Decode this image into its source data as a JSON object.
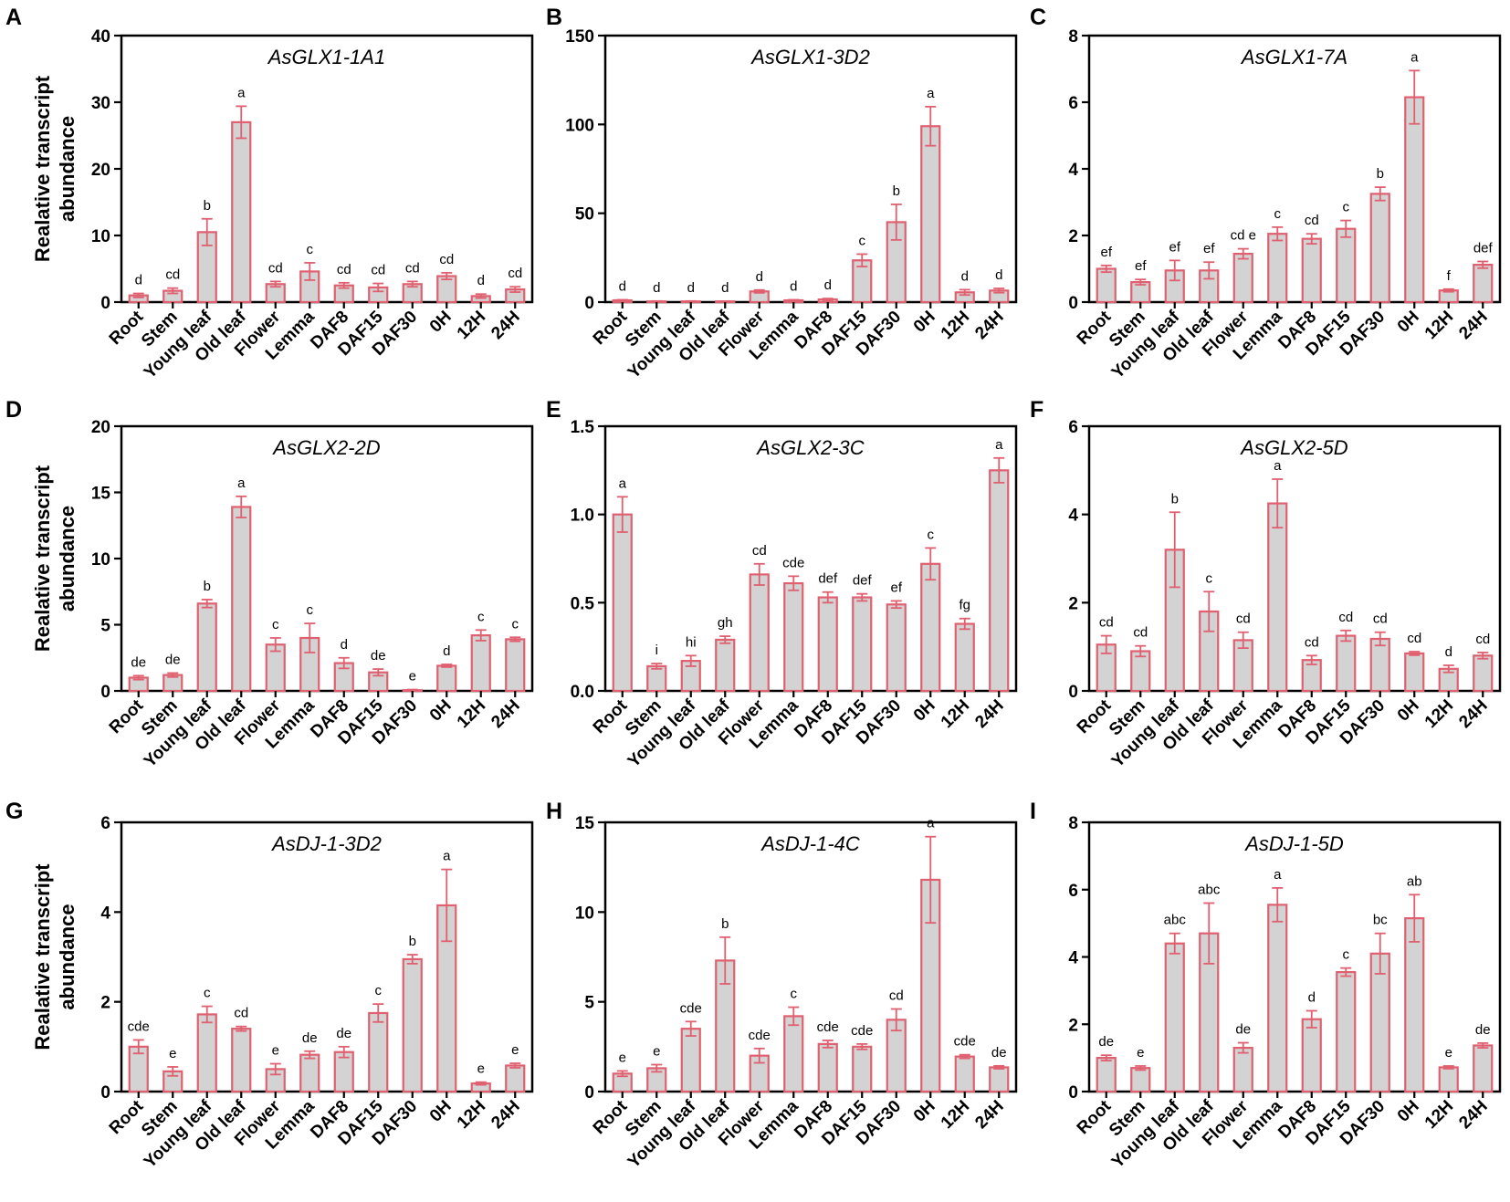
{
  "figure": {
    "ylabel_line1": "Realative transcript",
    "ylabel_line2": "abundance",
    "colors": {
      "bar_fill": "#d3d3d3",
      "bar_edge": "#e06070",
      "axis": "#000000"
    }
  },
  "chart_data": [
    {
      "panel": "A",
      "type": "bar",
      "title": "AsGLX1-1A1",
      "ylabel": "Realative transcript abundance",
      "xlabel": "",
      "ylim": [
        0,
        40
      ],
      "yticks": [
        0,
        10,
        20,
        30,
        40
      ],
      "categories": [
        "Root",
        "Stem",
        "Young leaf",
        "Old leaf",
        "Flower",
        "Lemma",
        "DAF8",
        "DAF15",
        "DAF30",
        "0H",
        "12H",
        "24H"
      ],
      "values": [
        1.0,
        1.7,
        10.5,
        27.0,
        2.7,
        4.6,
        2.5,
        2.2,
        2.7,
        3.9,
        0.9,
        1.9
      ],
      "errors": [
        0.3,
        0.4,
        2.0,
        2.4,
        0.4,
        1.3,
        0.4,
        0.6,
        0.4,
        0.5,
        0.3,
        0.4
      ],
      "labels": [
        "d",
        "cd",
        "b",
        "a",
        "cd",
        "c",
        "cd",
        "cd",
        "cd",
        "cd",
        "d",
        "cd"
      ]
    },
    {
      "panel": "B",
      "type": "bar",
      "title": "AsGLX1-3D2",
      "ylabel": "",
      "xlabel": "",
      "ylim": [
        0,
        150
      ],
      "yticks": [
        0,
        50,
        100,
        150
      ],
      "categories": [
        "Root",
        "Stem",
        "Young leaf",
        "Old leaf",
        "Flower",
        "Lemma",
        "DAF8",
        "DAF15",
        "DAF30",
        "0H",
        "12H",
        "24H"
      ],
      "values": [
        1.0,
        0.4,
        0.4,
        0.3,
        6.0,
        1.0,
        1.5,
        23.5,
        45.0,
        99.0,
        5.5,
        6.5
      ],
      "errors": [
        0.3,
        0.2,
        0.2,
        0.2,
        0.8,
        0.3,
        0.5,
        3.5,
        10.0,
        11.0,
        1.5,
        1.2
      ],
      "labels": [
        "d",
        "d",
        "d",
        "d",
        "d",
        "d",
        "d",
        "c",
        "b",
        "a",
        "d",
        "d"
      ]
    },
    {
      "panel": "C",
      "type": "bar",
      "title": "AsGLX1-7A",
      "ylabel": "",
      "xlabel": "",
      "ylim": [
        0,
        8
      ],
      "yticks": [
        0,
        2,
        4,
        6,
        8
      ],
      "categories": [
        "Root",
        "Stem",
        "Young leaf",
        "Old leaf",
        "Flower",
        "Lemma",
        "DAF8",
        "DAF15",
        "DAF30",
        "0H",
        "12H",
        "24H"
      ],
      "values": [
        1.0,
        0.6,
        0.95,
        0.95,
        1.45,
        2.05,
        1.9,
        2.2,
        3.25,
        6.15,
        0.35,
        1.12
      ],
      "errors": [
        0.1,
        0.08,
        0.3,
        0.25,
        0.15,
        0.2,
        0.15,
        0.25,
        0.2,
        0.8,
        0.04,
        0.1
      ],
      "labels": [
        "ef",
        "ef",
        "ef",
        "ef",
        "cd e",
        "c",
        "cd",
        "c",
        "b",
        "a",
        "f",
        "def"
      ]
    },
    {
      "panel": "D",
      "type": "bar",
      "title": "AsGLX2-2D",
      "ylabel": "Realative transcript abundance",
      "xlabel": "",
      "ylim": [
        0,
        20
      ],
      "yticks": [
        0,
        5,
        10,
        15,
        20
      ],
      "categories": [
        "Root",
        "Stem",
        "Young leaf",
        "Old leaf",
        "Flower",
        "Lemma",
        "DAF8",
        "DAF15",
        "DAF30",
        "0H",
        "12H",
        "24H"
      ],
      "values": [
        1.0,
        1.2,
        6.6,
        13.9,
        3.5,
        4.0,
        2.1,
        1.4,
        0.05,
        1.9,
        4.2,
        3.9
      ],
      "errors": [
        0.15,
        0.15,
        0.3,
        0.8,
        0.5,
        1.1,
        0.4,
        0.25,
        0.05,
        0.1,
        0.4,
        0.15
      ],
      "labels": [
        "de",
        "de",
        "b",
        "a",
        "c",
        "c",
        "d",
        "de",
        "e",
        "d",
        "c",
        "c"
      ]
    },
    {
      "panel": "E",
      "type": "bar",
      "title": "AsGLX2-3C",
      "ylabel": "",
      "xlabel": "",
      "ylim": [
        0,
        1.5
      ],
      "yticks": [
        0.0,
        0.5,
        1.0,
        1.5
      ],
      "yticklabels": [
        "0.0",
        "0.5",
        "1.0",
        "1.5"
      ],
      "categories": [
        "Root",
        "Stem",
        "Young leaf",
        "Old leaf",
        "Flower",
        "Lemma",
        "DAF8",
        "DAF15",
        "DAF30",
        "0H",
        "12H",
        "24H"
      ],
      "values": [
        1.0,
        0.14,
        0.17,
        0.29,
        0.66,
        0.61,
        0.53,
        0.53,
        0.49,
        0.72,
        0.38,
        1.25
      ],
      "errors": [
        0.1,
        0.015,
        0.03,
        0.02,
        0.06,
        0.04,
        0.03,
        0.02,
        0.02,
        0.09,
        0.03,
        0.07
      ],
      "labels": [
        "a",
        "i",
        "hi",
        "gh",
        "cd",
        "cde",
        "def",
        "def",
        "ef",
        "c",
        "fg",
        "a"
      ]
    },
    {
      "panel": "F",
      "type": "bar",
      "title": "AsGLX2-5D",
      "ylabel": "",
      "xlabel": "",
      "ylim": [
        0,
        6
      ],
      "yticks": [
        0,
        2,
        4,
        6
      ],
      "categories": [
        "Root",
        "Stem",
        "Young leaf",
        "Old leaf",
        "Flower",
        "Lemma",
        "DAF8",
        "DAF15",
        "DAF30",
        "0H",
        "12H",
        "24H"
      ],
      "values": [
        1.05,
        0.9,
        3.2,
        1.8,
        1.15,
        4.25,
        0.7,
        1.25,
        1.18,
        0.85,
        0.5,
        0.8
      ],
      "errors": [
        0.2,
        0.12,
        0.85,
        0.45,
        0.18,
        0.55,
        0.1,
        0.12,
        0.15,
        0.04,
        0.08,
        0.07
      ],
      "labels": [
        "cd",
        "cd",
        "b",
        "c",
        "cd",
        "a",
        "cd",
        "cd",
        "cd",
        "cd",
        "d",
        "cd"
      ]
    },
    {
      "panel": "G",
      "type": "bar",
      "title": "AsDJ-1-3D2",
      "ylabel": "Realative transcript abundance",
      "xlabel": "",
      "ylim": [
        0,
        6
      ],
      "yticks": [
        0,
        2,
        4,
        6
      ],
      "categories": [
        "Root",
        "Stem",
        "Young leaf",
        "Old leaf",
        "Flower",
        "Lemma",
        "DAF8",
        "DAF15",
        "DAF30",
        "0H",
        "12H",
        "24H"
      ],
      "values": [
        1.0,
        0.45,
        1.72,
        1.4,
        0.5,
        0.82,
        0.88,
        1.75,
        2.95,
        4.15,
        0.18,
        0.58
      ],
      "errors": [
        0.15,
        0.1,
        0.18,
        0.05,
        0.12,
        0.08,
        0.12,
        0.2,
        0.1,
        0.8,
        0.03,
        0.05
      ],
      "labels": [
        "cde",
        "e",
        "c",
        "cd",
        "e",
        "de",
        "de",
        "c",
        "b",
        "a",
        "e",
        "e"
      ]
    },
    {
      "panel": "H",
      "type": "bar",
      "title": "AsDJ-1-4C",
      "ylabel": "",
      "xlabel": "",
      "ylim": [
        0,
        15
      ],
      "yticks": [
        0,
        5,
        10,
        15
      ],
      "categories": [
        "Root",
        "Stem",
        "Young leaf",
        "Old leaf",
        "Flower",
        "Lemma",
        "DAF8",
        "DAF15",
        "DAF30",
        "0H",
        "12H",
        "24H"
      ],
      "values": [
        1.0,
        1.3,
        3.5,
        7.3,
        2.0,
        4.2,
        2.65,
        2.5,
        4.0,
        11.8,
        1.95,
        1.35
      ],
      "errors": [
        0.15,
        0.2,
        0.4,
        1.3,
        0.4,
        0.5,
        0.2,
        0.15,
        0.6,
        2.4,
        0.1,
        0.08
      ],
      "labels": [
        "e",
        "e",
        "cde",
        "b",
        "cde",
        "c",
        "cde",
        "cde",
        "cd",
        "a",
        "cde",
        "de"
      ]
    },
    {
      "panel": "I",
      "type": "bar",
      "title": "AsDJ-1-5D",
      "ylabel": "",
      "xlabel": "",
      "ylim": [
        0,
        8
      ],
      "yticks": [
        0,
        2,
        4,
        6,
        8
      ],
      "categories": [
        "Root",
        "Stem",
        "Young leaf",
        "Old leaf",
        "Flower",
        "Lemma",
        "DAF8",
        "DAF15",
        "DAF30",
        "0H",
        "12H",
        "24H"
      ],
      "values": [
        1.0,
        0.7,
        4.4,
        4.7,
        1.3,
        5.55,
        2.15,
        3.55,
        4.1,
        5.15,
        0.72,
        1.37
      ],
      "errors": [
        0.08,
        0.06,
        0.3,
        0.9,
        0.15,
        0.5,
        0.25,
        0.12,
        0.6,
        0.7,
        0.04,
        0.07
      ],
      "labels": [
        "de",
        "e",
        "abc",
        "abc",
        "de",
        "a",
        "d",
        "c",
        "bc",
        "ab",
        "e",
        "de"
      ]
    }
  ]
}
